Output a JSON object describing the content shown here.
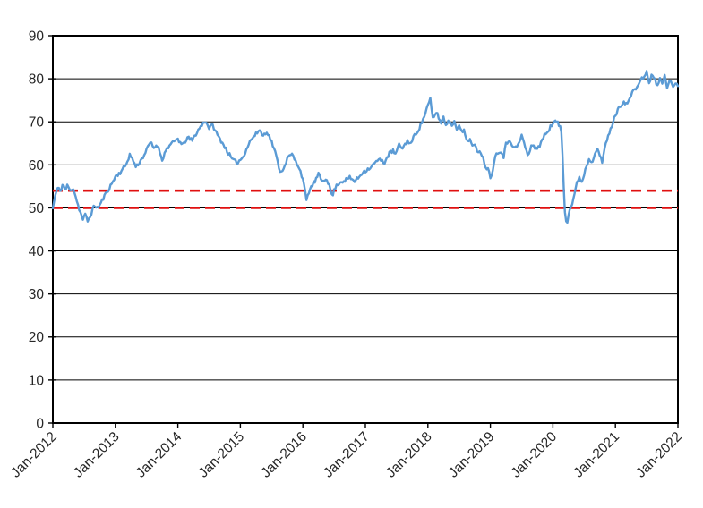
{
  "chart_data": {
    "type": "line",
    "title": "",
    "xlabel": "",
    "ylabel": "",
    "x_range": [
      2012,
      2022
    ],
    "y_range": [
      0,
      90
    ],
    "y_ticks": [
      0,
      10,
      20,
      30,
      40,
      50,
      60,
      70,
      80,
      90
    ],
    "x_ticks": [
      {
        "x": 2012,
        "label": "Jan-2012"
      },
      {
        "x": 2013,
        "label": "Jan-2013"
      },
      {
        "x": 2014,
        "label": "Jan-2014"
      },
      {
        "x": 2015,
        "label": "Jan-2015"
      },
      {
        "x": 2016,
        "label": "Jan-2016"
      },
      {
        "x": 2017,
        "label": "Jan-2017"
      },
      {
        "x": 2018,
        "label": "Jan-2018"
      },
      {
        "x": 2019,
        "label": "Jan-2019"
      },
      {
        "x": 2020,
        "label": "Jan-2020"
      },
      {
        "x": 2021,
        "label": "Jan-2021"
      },
      {
        "x": 2022,
        "label": "Jan-2022"
      }
    ],
    "grid": "horizontal",
    "grid_color": "#000000",
    "axis_color": "#000000",
    "legend": "none",
    "reference_lines": [
      {
        "value": 54,
        "color": "#e01010",
        "style": "dashed",
        "width": 2.6,
        "dash": "11 6"
      },
      {
        "value": 50,
        "color": "#e01010",
        "style": "dashed",
        "width": 2.6,
        "dash": "11 6"
      }
    ],
    "series": [
      {
        "name": "index",
        "color": "#5b9bd5",
        "width": 2.4,
        "noise": {
          "seed": 11,
          "amplitude": 0.45,
          "step": 0.019230769
        },
        "points": [
          [
            2012.0,
            49.9
          ],
          [
            2012.04,
            53.0
          ],
          [
            2012.08,
            54.7
          ],
          [
            2012.12,
            53.8
          ],
          [
            2012.16,
            55.6
          ],
          [
            2012.2,
            54.1
          ],
          [
            2012.24,
            55.4
          ],
          [
            2012.28,
            53.6
          ],
          [
            2012.32,
            54.9
          ],
          [
            2012.36,
            53.0
          ],
          [
            2012.4,
            50.8
          ],
          [
            2012.44,
            49.0
          ],
          [
            2012.48,
            47.3
          ],
          [
            2012.52,
            48.4
          ],
          [
            2012.56,
            46.9
          ],
          [
            2012.6,
            48.2
          ],
          [
            2012.64,
            49.8
          ],
          [
            2012.68,
            50.6
          ],
          [
            2012.72,
            49.9
          ],
          [
            2012.76,
            50.9
          ],
          [
            2012.8,
            52.0
          ],
          [
            2012.84,
            53.1
          ],
          [
            2012.88,
            54.1
          ],
          [
            2012.92,
            55.0
          ],
          [
            2012.96,
            56.1
          ],
          [
            2013.0,
            57.3
          ],
          [
            2013.08,
            58.3
          ],
          [
            2013.17,
            60.0
          ],
          [
            2013.23,
            62.4
          ],
          [
            2013.29,
            60.9
          ],
          [
            2013.33,
            59.5
          ],
          [
            2013.42,
            61.3
          ],
          [
            2013.5,
            63.4
          ],
          [
            2013.56,
            65.3
          ],
          [
            2013.61,
            63.9
          ],
          [
            2013.67,
            64.7
          ],
          [
            2013.75,
            61.3
          ],
          [
            2013.83,
            64.0
          ],
          [
            2013.92,
            65.1
          ],
          [
            2014.0,
            66.1
          ],
          [
            2014.07,
            64.4
          ],
          [
            2014.15,
            66.3
          ],
          [
            2014.23,
            65.7
          ],
          [
            2014.31,
            67.7
          ],
          [
            2014.38,
            69.2
          ],
          [
            2014.44,
            70.3
          ],
          [
            2014.5,
            68.6
          ],
          [
            2014.56,
            69.2
          ],
          [
            2014.63,
            67.0
          ],
          [
            2014.71,
            65.2
          ],
          [
            2014.79,
            63.2
          ],
          [
            2014.87,
            61.2
          ],
          [
            2014.95,
            60.5
          ],
          [
            2015.04,
            61.8
          ],
          [
            2015.1,
            63.8
          ],
          [
            2015.17,
            65.9
          ],
          [
            2015.25,
            67.1
          ],
          [
            2015.31,
            68.3
          ],
          [
            2015.36,
            66.6
          ],
          [
            2015.42,
            67.9
          ],
          [
            2015.5,
            65.4
          ],
          [
            2015.56,
            62.8
          ],
          [
            2015.61,
            59.8
          ],
          [
            2015.65,
            58.1
          ],
          [
            2015.71,
            60.0
          ],
          [
            2015.77,
            61.9
          ],
          [
            2015.83,
            62.4
          ],
          [
            2015.88,
            60.9
          ],
          [
            2015.94,
            59.5
          ],
          [
            2016.0,
            56.7
          ],
          [
            2016.06,
            51.6
          ],
          [
            2016.1,
            54.0
          ],
          [
            2016.15,
            55.2
          ],
          [
            2016.21,
            56.6
          ],
          [
            2016.25,
            57.8
          ],
          [
            2016.31,
            56.2
          ],
          [
            2016.38,
            57.0
          ],
          [
            2016.42,
            55.2
          ],
          [
            2016.47,
            52.7
          ],
          [
            2016.52,
            54.8
          ],
          [
            2016.58,
            55.9
          ],
          [
            2016.67,
            56.4
          ],
          [
            2016.75,
            57.0
          ],
          [
            2016.83,
            56.2
          ],
          [
            2016.9,
            57.2
          ],
          [
            2016.96,
            58.4
          ],
          [
            2017.04,
            59.0
          ],
          [
            2017.12,
            59.9
          ],
          [
            2017.19,
            61.0
          ],
          [
            2017.25,
            61.1
          ],
          [
            2017.31,
            60.6
          ],
          [
            2017.38,
            62.6
          ],
          [
            2017.44,
            63.3
          ],
          [
            2017.48,
            62.4
          ],
          [
            2017.54,
            64.6
          ],
          [
            2017.6,
            63.9
          ],
          [
            2017.67,
            65.6
          ],
          [
            2017.73,
            64.9
          ],
          [
            2017.79,
            67.0
          ],
          [
            2017.85,
            68.2
          ],
          [
            2017.92,
            70.4
          ],
          [
            2017.98,
            73.0
          ],
          [
            2018.04,
            75.2
          ],
          [
            2018.08,
            70.4
          ],
          [
            2018.13,
            72.4
          ],
          [
            2018.17,
            71.2
          ],
          [
            2018.21,
            69.6
          ],
          [
            2018.25,
            71.2
          ],
          [
            2018.29,
            69.0
          ],
          [
            2018.33,
            70.6
          ],
          [
            2018.38,
            69.0
          ],
          [
            2018.42,
            70.3
          ],
          [
            2018.46,
            68.4
          ],
          [
            2018.5,
            69.6
          ],
          [
            2018.54,
            67.5
          ],
          [
            2018.58,
            67.9
          ],
          [
            2018.63,
            65.4
          ],
          [
            2018.67,
            66.3
          ],
          [
            2018.71,
            64.2
          ],
          [
            2018.75,
            64.6
          ],
          [
            2018.79,
            62.9
          ],
          [
            2018.83,
            63.6
          ],
          [
            2018.88,
            61.7
          ],
          [
            2018.92,
            59.8
          ],
          [
            2018.96,
            59.0
          ],
          [
            2019.01,
            56.9
          ],
          [
            2019.06,
            60.8
          ],
          [
            2019.1,
            62.9
          ],
          [
            2019.16,
            63.3
          ],
          [
            2019.21,
            61.9
          ],
          [
            2019.25,
            64.8
          ],
          [
            2019.31,
            65.9
          ],
          [
            2019.38,
            63.8
          ],
          [
            2019.44,
            64.4
          ],
          [
            2019.5,
            66.9
          ],
          [
            2019.56,
            64.0
          ],
          [
            2019.6,
            62.1
          ],
          [
            2019.67,
            64.7
          ],
          [
            2019.73,
            63.9
          ],
          [
            2019.79,
            64.4
          ],
          [
            2019.85,
            66.5
          ],
          [
            2019.92,
            67.9
          ],
          [
            2019.98,
            69.3
          ],
          [
            2020.06,
            70.2
          ],
          [
            2020.1,
            69.0
          ],
          [
            2020.13,
            68.9
          ],
          [
            2020.15,
            64.0
          ],
          [
            2020.17,
            56.0
          ],
          [
            2020.2,
            47.2
          ],
          [
            2020.23,
            46.9
          ],
          [
            2020.26,
            49.2
          ],
          [
            2020.3,
            50.6
          ],
          [
            2020.34,
            52.8
          ],
          [
            2020.38,
            55.4
          ],
          [
            2020.42,
            57.4
          ],
          [
            2020.46,
            55.8
          ],
          [
            2020.5,
            57.9
          ],
          [
            2020.54,
            60.0
          ],
          [
            2020.58,
            61.3
          ],
          [
            2020.63,
            60.7
          ],
          [
            2020.67,
            62.9
          ],
          [
            2020.71,
            64.0
          ],
          [
            2020.75,
            62.3
          ],
          [
            2020.79,
            60.2
          ],
          [
            2020.83,
            64.3
          ],
          [
            2020.88,
            66.3
          ],
          [
            2020.94,
            69.0
          ],
          [
            2021.0,
            71.6
          ],
          [
            2021.06,
            73.3
          ],
          [
            2021.13,
            74.8
          ],
          [
            2021.19,
            74.0
          ],
          [
            2021.25,
            76.2
          ],
          [
            2021.31,
            77.5
          ],
          [
            2021.38,
            79.0
          ],
          [
            2021.44,
            80.3
          ],
          [
            2021.5,
            81.4
          ],
          [
            2021.54,
            78.9
          ],
          [
            2021.58,
            81.0
          ],
          [
            2021.63,
            79.9
          ],
          [
            2021.67,
            77.9
          ],
          [
            2021.71,
            80.5
          ],
          [
            2021.75,
            78.6
          ],
          [
            2021.79,
            81.2
          ],
          [
            2021.83,
            77.7
          ],
          [
            2021.88,
            79.9
          ],
          [
            2021.92,
            78.1
          ],
          [
            2021.96,
            79.0
          ],
          [
            2022.0,
            78.3
          ]
        ]
      }
    ]
  }
}
